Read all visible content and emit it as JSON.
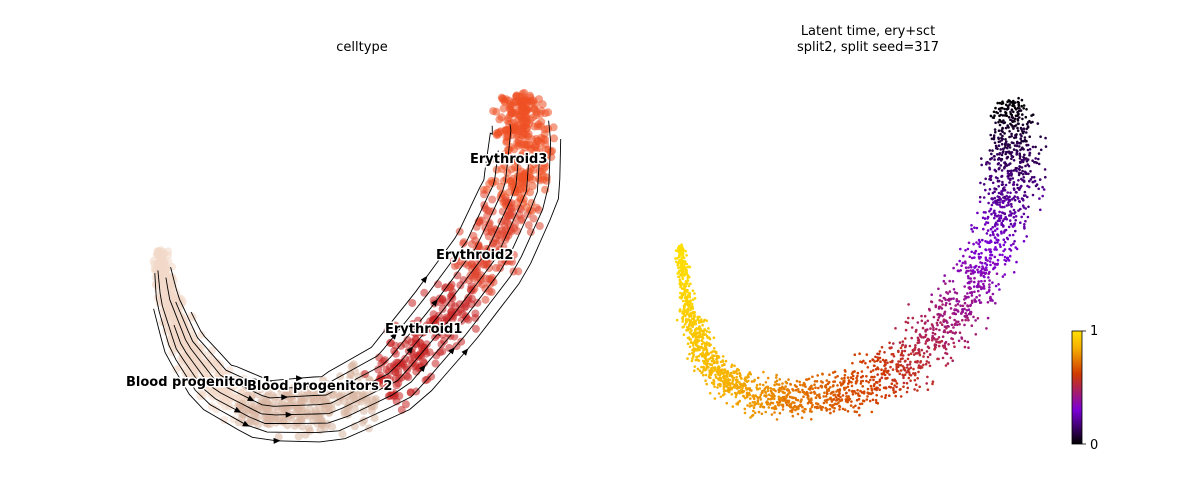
{
  "chart_data": [
    {
      "type": "scatter",
      "title": "celltype",
      "xlabel": "",
      "ylabel": "",
      "grid": false,
      "overlay": "velocity streamlines",
      "clusters": [
        {
          "name": "Blood progenitors 1",
          "color": "#f2d9c9"
        },
        {
          "name": "Blood progenitors 2",
          "color": "#d9b7a3"
        },
        {
          "name": "Erythroid1",
          "color": "#c82727"
        },
        {
          "name": "Erythroid2",
          "color": "#e0452f"
        },
        {
          "name": "Erythroid3",
          "color": "#ee5125"
        }
      ]
    },
    {
      "type": "scatter",
      "title": "Latent time, ery+sct",
      "subtitle": "split2, split seed=317",
      "xlabel": "",
      "ylabel": "",
      "grid": false,
      "colormap": "gnuplot",
      "colorbar": {
        "min": 0,
        "max": 1,
        "ticks": [
          "0",
          "1"
        ]
      }
    }
  ],
  "colors": {
    "colormap_stops": [
      "#000000",
      "#7a00d6",
      "#d03a00",
      "#f6b000",
      "#ffe000"
    ]
  }
}
